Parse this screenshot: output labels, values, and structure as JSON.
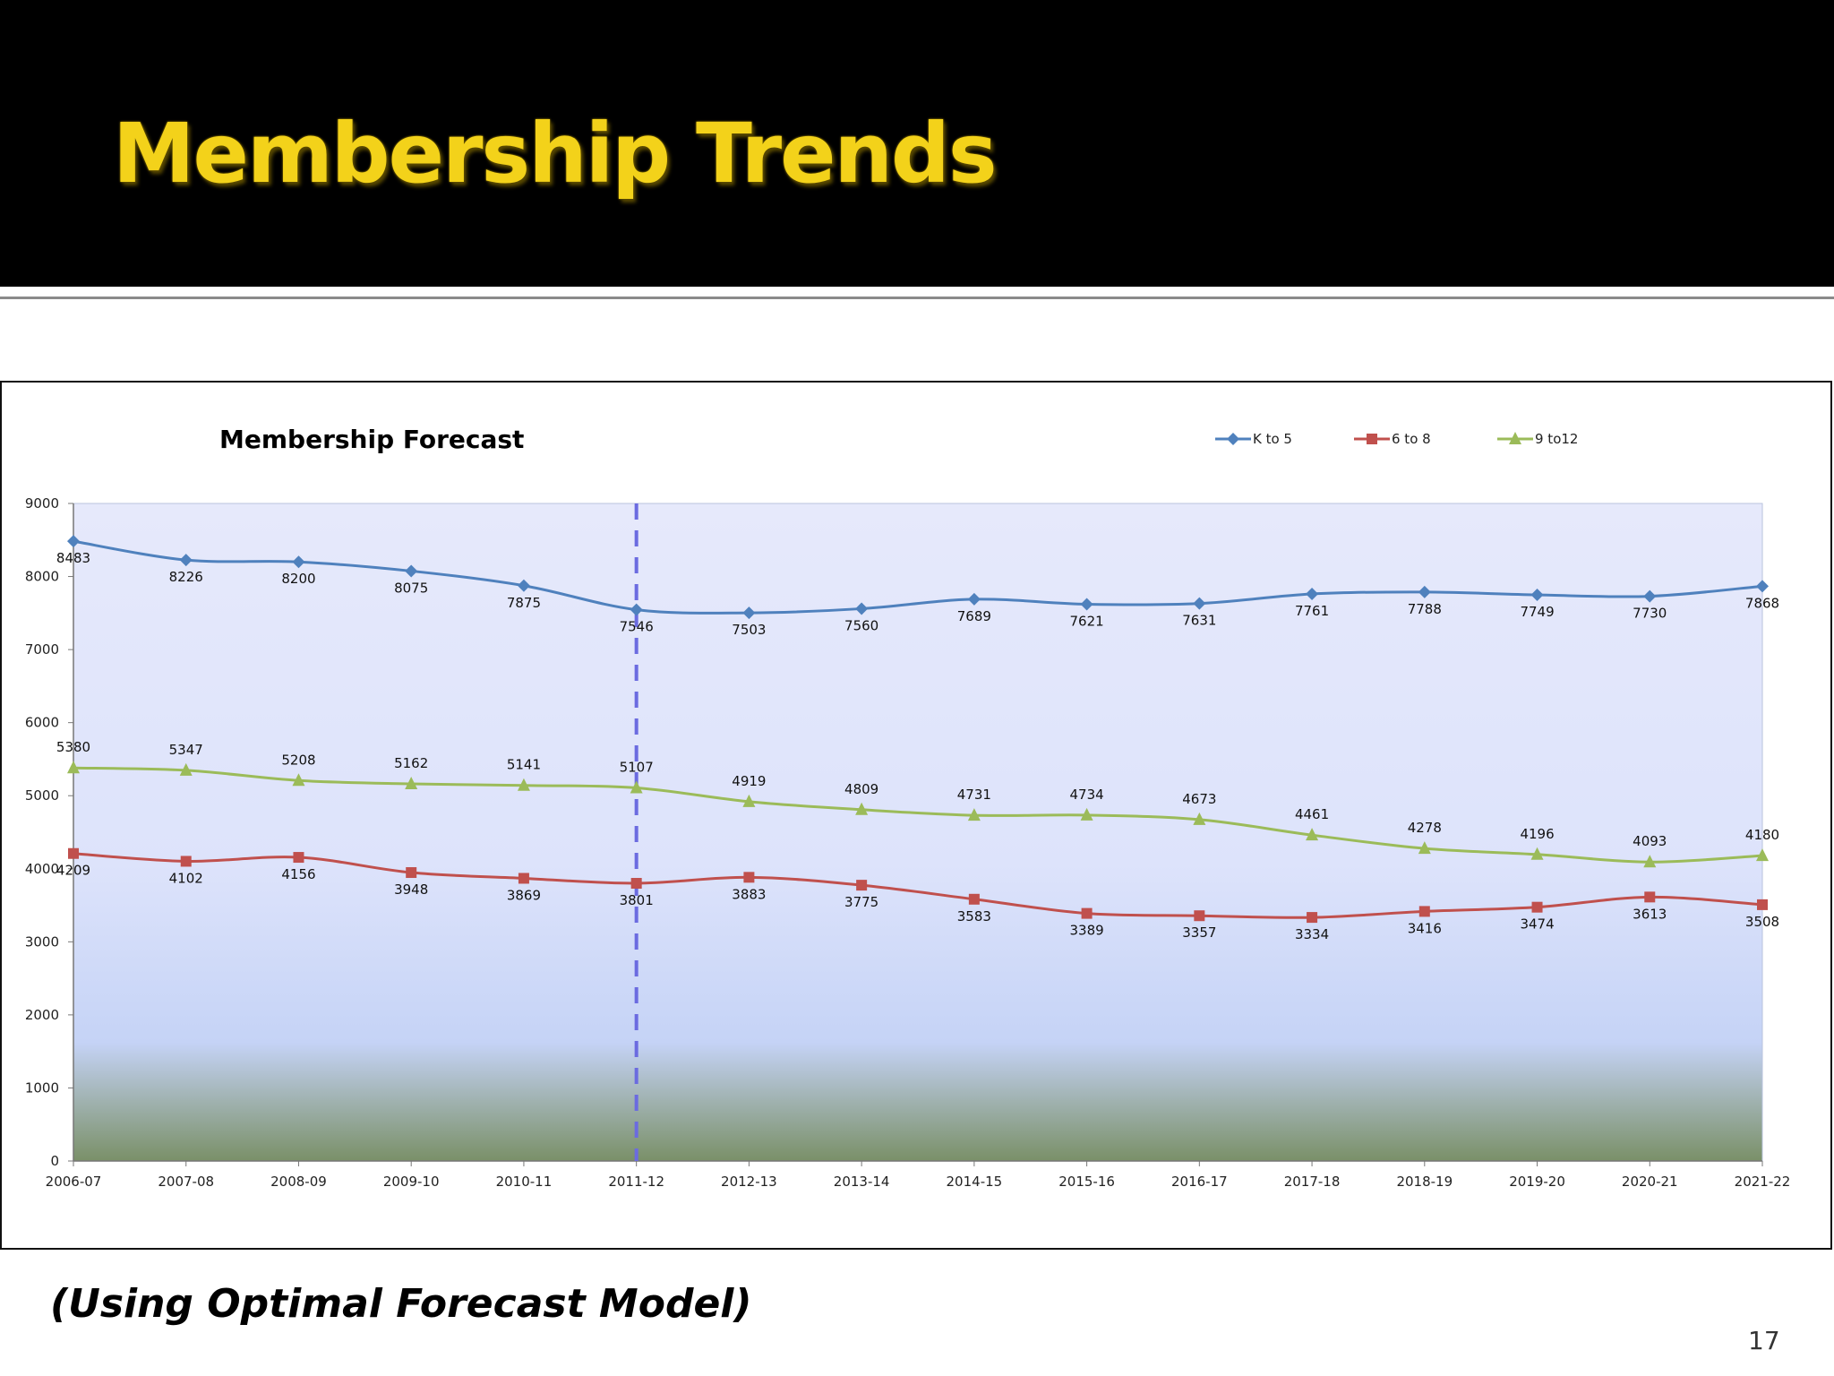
{
  "slide": {
    "title": "Membership Trends",
    "footnote": "(Using Optimal Forecast Model)",
    "page_number": "17"
  },
  "colors": {
    "title": "#f3d21a",
    "series": [
      "#4f81bd",
      "#c0504d",
      "#9bbb59"
    ],
    "divider": "#6b6be0",
    "plot_top": "#e6e9fb",
    "plot_bottom": "#7a9068"
  },
  "chart_data": {
    "type": "line",
    "title": "Membership Forecast",
    "xlabel": "",
    "ylabel": "",
    "ylim": [
      0,
      9000
    ],
    "ytick_step": 1000,
    "categories": [
      "2006-07",
      "2007-08",
      "2008-09",
      "2009-10",
      "2010-11",
      "2011-12",
      "2012-13",
      "2013-14",
      "2014-15",
      "2015-16",
      "2016-17",
      "2017-18",
      "2018-19",
      "2019-20",
      "2020-21",
      "2021-22"
    ],
    "series": [
      {
        "name": "K to 5",
        "marker": "diamond",
        "values": [
          8483,
          8226,
          8200,
          8075,
          7875,
          7546,
          7503,
          7560,
          7689,
          7621,
          7631,
          7761,
          7788,
          7749,
          7730,
          7868
        ]
      },
      {
        "name": "6 to 8",
        "marker": "square",
        "values": [
          4209,
          4102,
          4156,
          3948,
          3869,
          3801,
          3883,
          3775,
          3583,
          3389,
          3357,
          3334,
          3416,
          3474,
          3613,
          3508
        ]
      },
      {
        "name": "9 to12",
        "marker": "triangle",
        "values": [
          5380,
          5347,
          5208,
          5162,
          5141,
          5107,
          4919,
          4809,
          4731,
          4734,
          4673,
          4461,
          4278,
          4196,
          4093,
          4180
        ]
      }
    ],
    "annotations": [
      {
        "type": "vertical-dashed-line",
        "at_category": "2011-12"
      }
    ],
    "legend": "top-right",
    "grid": false
  }
}
